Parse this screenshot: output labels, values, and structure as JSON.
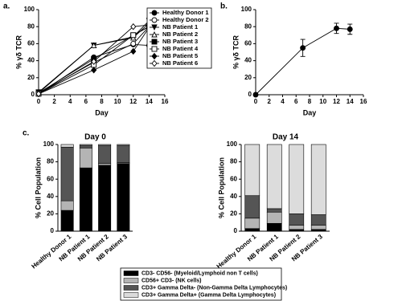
{
  "chart_data": [
    {
      "type": "line",
      "panel_label": "a.",
      "xlabel": "Day",
      "ylabel": "% γδ TCR",
      "xlim": [
        0,
        16
      ],
      "xticks": [
        0,
        2,
        4,
        6,
        8,
        10,
        12,
        14,
        16
      ],
      "ylim": [
        0,
        100
      ],
      "yticks": [
        0,
        20,
        40,
        60,
        80,
        100
      ],
      "x": [
        0,
        7,
        12,
        14
      ],
      "series": [
        {
          "name": "Healthy Donor 1",
          "marker": "circle",
          "filled": true,
          "color": "#000000",
          "values": [
            1,
            44,
            59,
            58
          ]
        },
        {
          "name": "Healthy Donor 2",
          "marker": "circle",
          "filled": false,
          "color": "#000000",
          "values": [
            2,
            38,
            60,
            80
          ]
        },
        {
          "name": "NB Patient 1",
          "marker": "triangle-down",
          "filled": true,
          "color": "#000000",
          "values": [
            3,
            58,
            68,
            87
          ]
        },
        {
          "name": "NB Patient 2",
          "marker": "triangle-up",
          "filled": false,
          "color": "#000000",
          "values": [
            2,
            58,
            67,
            84
          ]
        },
        {
          "name": "NB Patient 3",
          "marker": "square",
          "filled": true,
          "color": "#000000",
          "values": [
            2,
            42,
            70,
            80
          ]
        },
        {
          "name": "NB Patient 4",
          "marker": "square",
          "filled": false,
          "color": "#000000",
          "values": [
            1,
            35,
            70,
            80
          ]
        },
        {
          "name": "NB Patient 5",
          "marker": "diamond",
          "filled": true,
          "color": "#000000",
          "values": [
            1,
            29,
            51,
            79
          ]
        },
        {
          "name": "NB Patient 6",
          "marker": "diamond",
          "filled": false,
          "color": "#000000",
          "values": [
            1,
            39,
            80,
            82
          ]
        }
      ]
    },
    {
      "type": "line",
      "panel_label": "b.",
      "xlabel": "Day",
      "ylabel": "% γδ TCR",
      "xlim": [
        0,
        16
      ],
      "xticks": [
        0,
        2,
        4,
        6,
        8,
        10,
        12,
        14,
        16
      ],
      "ylim": [
        0,
        100
      ],
      "yticks": [
        0,
        20,
        40,
        60,
        80,
        100
      ],
      "x": [
        0,
        7,
        12,
        14
      ],
      "series": [
        {
          "marker": "circle",
          "filled": true,
          "color": "#000000",
          "values": [
            0,
            55,
            78,
            77
          ],
          "errors": [
            1,
            10,
            6,
            6
          ]
        }
      ]
    },
    {
      "type": "stacked-bar",
      "panel_label": "c.",
      "title": "Day 0",
      "ylabel": "% Cell Population",
      "ylim": [
        0,
        100
      ],
      "yticks": [
        0,
        20,
        40,
        60,
        80,
        100
      ],
      "categories": [
        "Healthy Donor 1",
        "NB Patient 1",
        "NB Patient 2",
        "NB Patient 3"
      ],
      "series": [
        {
          "name": "CD3- CD56- (Myeloid/Lymphoid non T cells)",
          "color": "#000000",
          "values": [
            24,
            73,
            76,
            78
          ]
        },
        {
          "name": "CD56+ CD3- (NK cells)",
          "color": "#b4b4b4",
          "values": [
            11,
            23,
            2,
            1
          ]
        },
        {
          "name": "CD3+ Gamma Delta- (Non-Gamma Delta Lymphocytes)",
          "color": "#555555",
          "values": [
            62,
            3,
            21,
            20
          ]
        },
        {
          "name": "CD3+ Gamma Delta+ (Gamma Delta Lymphocytes)",
          "color": "#dcdcdc",
          "values": [
            3,
            1,
            1,
            1
          ]
        }
      ]
    },
    {
      "type": "stacked-bar",
      "title": "Day 14",
      "ylabel": "% Cell Population",
      "ylim": [
        0,
        100
      ],
      "yticks": [
        0,
        20,
        40,
        60,
        80,
        100
      ],
      "categories": [
        "Healthy Donor 1",
        "NB Patient 1",
        "NB Patient 2",
        "NB Patient 3"
      ],
      "series": [
        {
          "color": "#000000",
          "values": [
            3,
            9,
            2,
            2
          ]
        },
        {
          "color": "#b4b4b4",
          "values": [
            12,
            13,
            5,
            5
          ]
        },
        {
          "color": "#555555",
          "values": [
            26,
            4,
            13,
            12
          ]
        },
        {
          "color": "#dcdcdc",
          "values": [
            59,
            74,
            80,
            81
          ]
        }
      ]
    }
  ]
}
